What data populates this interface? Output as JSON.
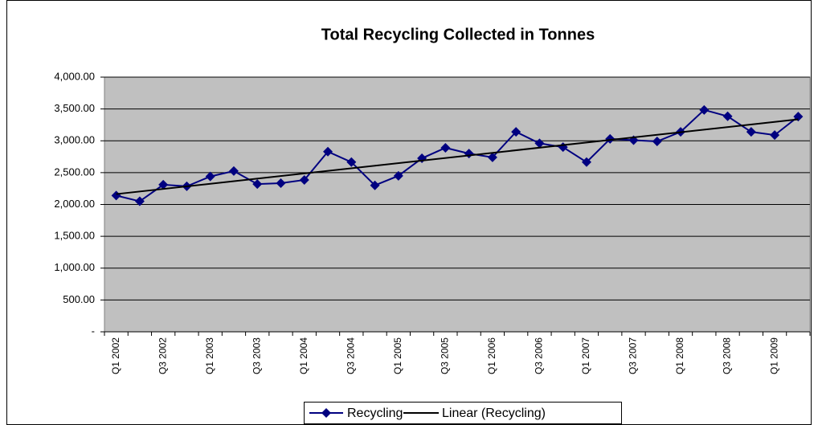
{
  "chart_data": {
    "type": "line",
    "title": "Total Recycling Collected in Tonnes",
    "categories": [
      "Q1 2002",
      null,
      "Q3 2002",
      null,
      "Q1 2003",
      null,
      "Q3 2003",
      null,
      "Q1 2004",
      null,
      "Q3 2004",
      null,
      "Q1 2005",
      null,
      "Q3 2005",
      null,
      "Q1 2006",
      null,
      "Q3 2006",
      null,
      "Q1 2007",
      null,
      "Q3 2007",
      null,
      "Q1 2008",
      null,
      "Q3 2008",
      null,
      "Q1 2009",
      null
    ],
    "series": [
      {
        "name": "Recycling",
        "color": "#000080",
        "values": [
          2140,
          2050,
          2310,
          2285,
          2440,
          2525,
          2320,
          2335,
          2385,
          2830,
          2665,
          2300,
          2450,
          2725,
          2890,
          2800,
          2740,
          3140,
          2960,
          2900,
          2665,
          3030,
          3010,
          2990,
          3140,
          3485,
          3385,
          3140,
          3090,
          3380
        ]
      }
    ],
    "trendline": {
      "type": "linear",
      "name": "Linear (Recycling)",
      "color": "#000000"
    },
    "ylim": [
      0,
      4000
    ],
    "yticks": [
      {
        "value": 0,
        "label": "-"
      },
      {
        "value": 500,
        "label": "500.00"
      },
      {
        "value": 1000,
        "label": "1,000.00"
      },
      {
        "value": 1500,
        "label": "1,500.00"
      },
      {
        "value": 2000,
        "label": "2,000.00"
      },
      {
        "value": 2500,
        "label": "2,500.00"
      },
      {
        "value": 3000,
        "label": "3,000.00"
      },
      {
        "value": 3500,
        "label": "3,500.00"
      },
      {
        "value": 4000,
        "label": "4,000.00"
      }
    ],
    "grid": true,
    "plot_background": "#c0c0c0",
    "legend": "bottom"
  }
}
